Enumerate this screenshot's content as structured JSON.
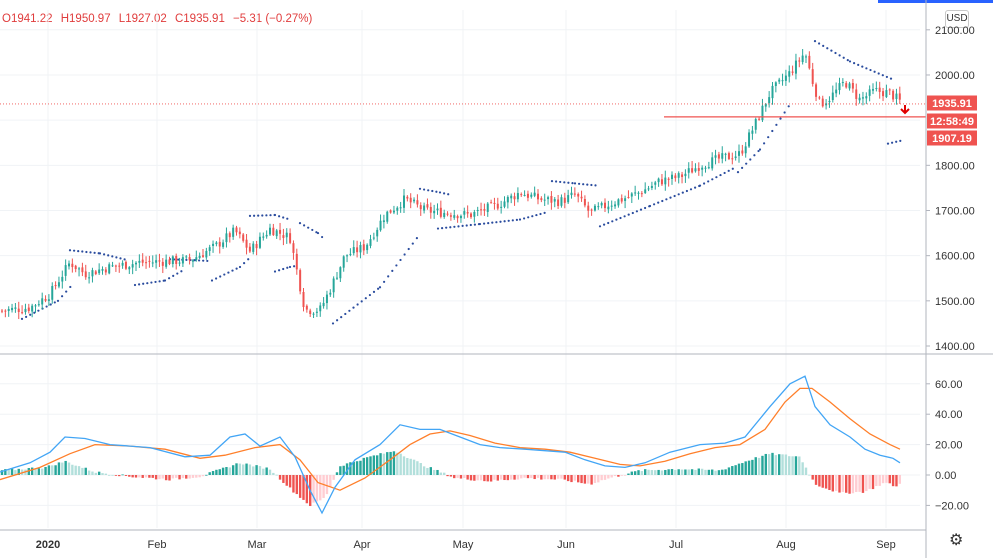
{
  "header": {
    "open": "O1941.22",
    "high": "H1950.97",
    "low": "L1927.02",
    "close": "C1935.91",
    "change": "−5.31 (−0.27%)",
    "currency_button": "USD"
  },
  "colors": {
    "up": "#26a69a",
    "down": "#ef5350",
    "sar": "#2a4c9e",
    "macd": "#42a5f5",
    "signal": "#ff7f2a",
    "hist_up_strong": "#26a69a",
    "hist_up_weak": "#b2dfdb",
    "hist_down_strong": "#ef5350",
    "hist_down_weak": "#ffcdd2",
    "price_tag": "#ef5350"
  },
  "chart_data": [
    {
      "type": "candlestick",
      "title": "",
      "price_axis": {
        "ticks": [
          "2100.00",
          "2000.00",
          "1900.00",
          "1800.00",
          "1700.00",
          "1600.00",
          "1500.00",
          "1400.00"
        ],
        "ylim": [
          1380,
          2100
        ]
      },
      "time_axis": {
        "ticks": [
          "2020",
          "Feb",
          "Mar",
          "Apr",
          "May",
          "Jun",
          "Jul",
          "Aug",
          "Sep"
        ]
      },
      "last_price": "1935.91",
      "countdown": "12:58:49",
      "horizontal_line": "1907.19",
      "indicators": [
        "Parabolic SAR"
      ]
    },
    {
      "type": "line",
      "title": "",
      "series": [
        {
          "values_desc": "MACD"
        },
        {
          "values_desc": "Signal"
        }
      ],
      "histogram": true,
      "y_axis": {
        "ticks": [
          "60.00",
          "40.00",
          "20.00",
          "0.00",
          "−20.00"
        ],
        "ylim": [
          -30,
          70
        ]
      }
    }
  ]
}
